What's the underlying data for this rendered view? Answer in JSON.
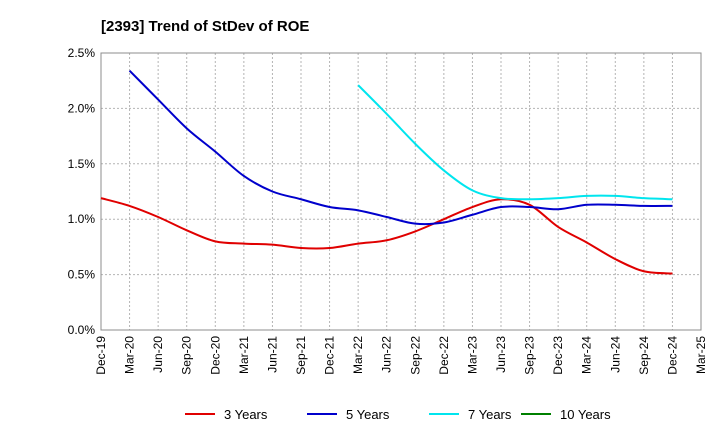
{
  "chart_data": {
    "type": "line",
    "title": "[2393]  Trend of StDev of ROE",
    "xlabel": "",
    "ylabel": "",
    "ylim": [
      0,
      2.5
    ],
    "y_ticks": [
      "0.0%",
      "0.5%",
      "1.0%",
      "1.5%",
      "2.0%",
      "2.5%"
    ],
    "x_ticks": [
      "Dec-19",
      "Mar-20",
      "Jun-20",
      "Sep-20",
      "Dec-20",
      "Mar-21",
      "Jun-21",
      "Sep-21",
      "Dec-21",
      "Mar-22",
      "Jun-22",
      "Sep-22",
      "Dec-22",
      "Mar-23",
      "Jun-23",
      "Sep-23",
      "Dec-23",
      "Mar-24",
      "Jun-24",
      "Sep-24",
      "Dec-24",
      "Mar-25"
    ],
    "grid": true,
    "legend_position": "bottom",
    "series": [
      {
        "name": "3 Years",
        "color": "#e00000",
        "x": [
          "Dec-19",
          "Mar-20",
          "Jun-20",
          "Sep-20",
          "Dec-20",
          "Mar-21",
          "Jun-21",
          "Sep-21",
          "Dec-21",
          "Mar-22",
          "Jun-22",
          "Sep-22",
          "Dec-22",
          "Mar-23",
          "Jun-23",
          "Sep-23",
          "Dec-23",
          "Mar-24",
          "Jun-24",
          "Sep-24",
          "Dec-24"
        ],
        "values": [
          1.19,
          1.12,
          1.02,
          0.9,
          0.8,
          0.78,
          0.77,
          0.74,
          0.74,
          0.78,
          0.81,
          0.89,
          1.0,
          1.11,
          1.18,
          1.13,
          0.93,
          0.79,
          0.64,
          0.53,
          0.51
        ]
      },
      {
        "name": "5 Years",
        "color": "#0000cc",
        "x": [
          "Mar-20",
          "Jun-20",
          "Sep-20",
          "Dec-20",
          "Mar-21",
          "Jun-21",
          "Sep-21",
          "Dec-21",
          "Mar-22",
          "Jun-22",
          "Sep-22",
          "Dec-22",
          "Mar-23",
          "Jun-23",
          "Sep-23",
          "Dec-23",
          "Mar-24",
          "Jun-24",
          "Sep-24",
          "Dec-24"
        ],
        "values": [
          2.34,
          2.08,
          1.82,
          1.61,
          1.39,
          1.25,
          1.18,
          1.11,
          1.08,
          1.02,
          0.96,
          0.97,
          1.04,
          1.11,
          1.11,
          1.09,
          1.13,
          1.13,
          1.12,
          1.12
        ]
      },
      {
        "name": "7 Years",
        "color": "#00e5ee",
        "x": [
          "Mar-22",
          "Jun-22",
          "Sep-22",
          "Dec-22",
          "Mar-23",
          "Jun-23",
          "Sep-23",
          "Dec-23",
          "Mar-24",
          "Jun-24",
          "Sep-24",
          "Dec-24"
        ],
        "values": [
          2.21,
          1.95,
          1.68,
          1.44,
          1.26,
          1.19,
          1.18,
          1.19,
          1.21,
          1.21,
          1.19,
          1.18
        ]
      },
      {
        "name": "10 Years",
        "color": "#008000",
        "x": [],
        "values": []
      }
    ]
  }
}
